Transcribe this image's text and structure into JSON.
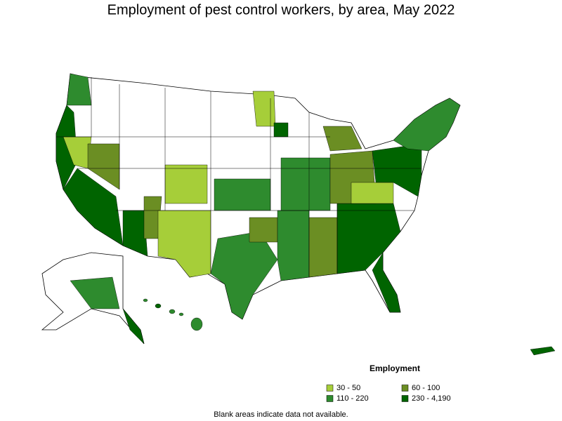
{
  "title": "Employment of pest control workers, by area, May 2022",
  "legend": {
    "title": "Employment",
    "items": [
      {
        "label": "30 - 50",
        "color": "#a6ce39"
      },
      {
        "label": "60 - 100",
        "color": "#6b8e23"
      },
      {
        "label": "110 - 220",
        "color": "#2e8b2e"
      },
      {
        "label": "230 - 4,190",
        "color": "#006400"
      }
    ]
  },
  "note": "Blank areas indicate data not available."
}
